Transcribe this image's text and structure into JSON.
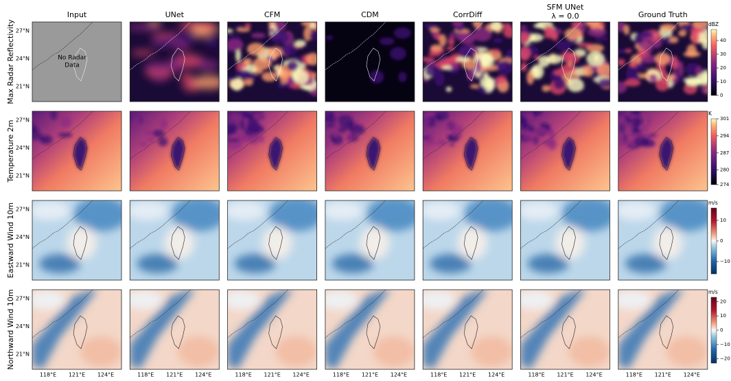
{
  "columns": [
    {
      "title": "Input"
    },
    {
      "title": "UNet"
    },
    {
      "title": "CFM"
    },
    {
      "title": "CDM"
    },
    {
      "title": "CorrDiff"
    },
    {
      "title": "SFM UNet",
      "subtitle": "λ = 0.0"
    },
    {
      "title": "Ground Truth"
    }
  ],
  "rows": [
    {
      "label": "Max Radar Reflectivity",
      "colorbar": {
        "unit": "dBZ",
        "colormap": "magma",
        "lim": [
          0,
          48
        ],
        "ticks": [
          0,
          10,
          20,
          30,
          40
        ]
      }
    },
    {
      "label": "Temperature 2m",
      "colorbar": {
        "unit": "K",
        "colormap": "magma",
        "lim": [
          274,
          301
        ],
        "ticks": [
          274,
          280,
          287,
          294,
          301
        ]
      }
    },
    {
      "label": "Eastward Wind 10m",
      "colorbar": {
        "unit": "m/s",
        "colormap": "RdBu_r",
        "lim": [
          -16,
          16
        ],
        "ticks": [
          {
            "value": -10,
            "label": "−10"
          },
          0,
          10
        ]
      }
    },
    {
      "label": "Northward Wind 10m",
      "colorbar": {
        "unit": "m/s",
        "colormap": "RdBu_r",
        "lim": [
          -23,
          23
        ],
        "ticks": [
          {
            "value": -20,
            "label": "−20"
          },
          {
            "value": -10,
            "label": "−10"
          },
          0,
          10,
          20
        ]
      }
    }
  ],
  "lat_ticks": [
    "27°N",
    "24°N",
    "21°N"
  ],
  "lon_ticks": [
    "118°E",
    "121°E",
    "124°E"
  ],
  "annotation": [
    "No Radar",
    "Data"
  ]
}
